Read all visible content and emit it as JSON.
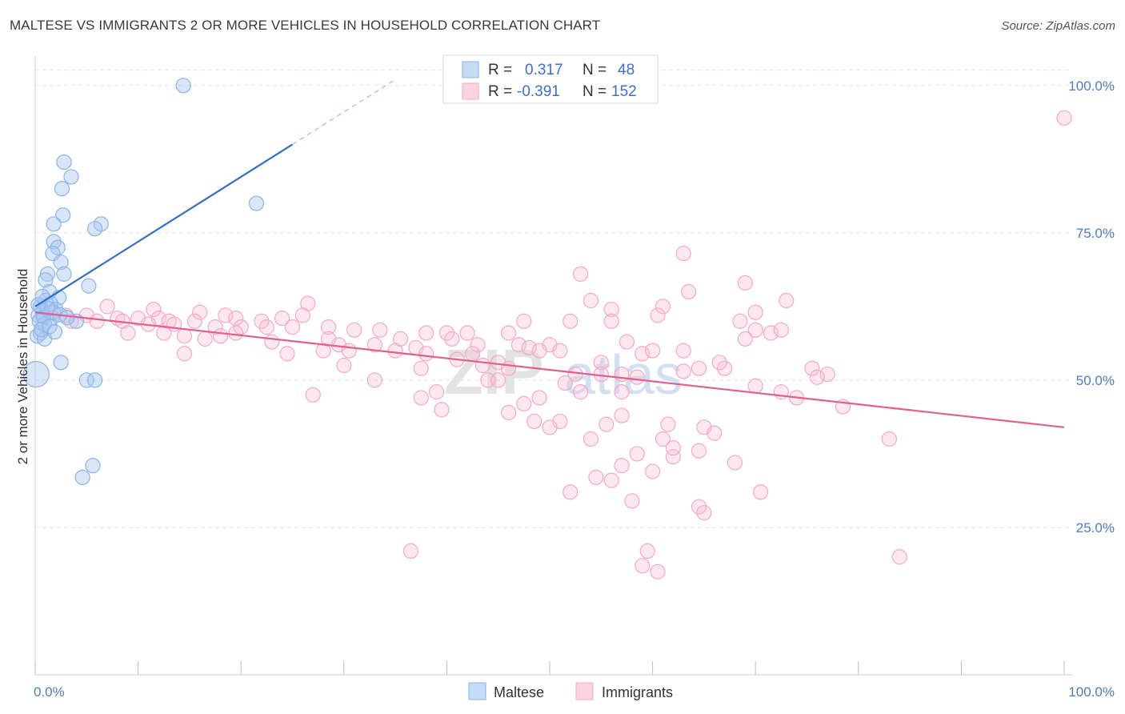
{
  "title": "MALTESE VS IMMIGRANTS 2 OR MORE VEHICLES IN HOUSEHOLD CORRELATION CHART",
  "source": "Source: ZipAtlas.com",
  "watermark": {
    "zip": "ZIP",
    "atlas": "atlas"
  },
  "chart_data": {
    "type": "scatter",
    "ylabel": "2 or more Vehicles in Household",
    "xlim": [
      0,
      100
    ],
    "ylim": [
      0,
      105
    ],
    "x_tick_labels": [
      "0.0%",
      "100.0%"
    ],
    "y_ticks": [
      25,
      50,
      75,
      100
    ],
    "y_tick_labels": [
      "25.0%",
      "50.0%",
      "75.0%",
      "100.0%"
    ],
    "grid": true,
    "legend_placement": "top-center",
    "legend": [
      {
        "r_label": "R =",
        "r_value": "0.317",
        "n_label": "N =",
        "n_value": "48"
      },
      {
        "r_label": "R =",
        "r_value": "-0.391",
        "n_label": "N =",
        "n_value": "152"
      }
    ],
    "series": [
      {
        "name": "Maltese",
        "color": "#89b4ea",
        "trend": {
          "x1": 0,
          "y1": 62.5,
          "x2": 25,
          "y2": 90.0,
          "dash_to_x": 35,
          "dash_to_y": 101.0,
          "color": "#2f6fcb"
        },
        "points": [
          [
            14.4,
            100
          ],
          [
            2.8,
            87
          ],
          [
            3.5,
            84.5
          ],
          [
            2.6,
            82.5
          ],
          [
            2.7,
            78
          ],
          [
            1.8,
            76.5
          ],
          [
            6.4,
            76.5
          ],
          [
            5.8,
            75.7
          ],
          [
            1.8,
            73.5
          ],
          [
            2.2,
            72.5
          ],
          [
            1.7,
            71.5
          ],
          [
            2.5,
            70
          ],
          [
            2.8,
            68
          ],
          [
            1.2,
            68
          ],
          [
            1.0,
            67
          ],
          [
            5.2,
            66
          ],
          [
            1.4,
            65
          ],
          [
            2.3,
            64
          ],
          [
            1.0,
            63.5
          ],
          [
            1.5,
            63
          ],
          [
            0.5,
            62.5
          ],
          [
            2.0,
            62
          ],
          [
            0.7,
            61.5
          ],
          [
            0.3,
            61
          ],
          [
            1.6,
            60.5
          ],
          [
            0.4,
            60
          ],
          [
            4.0,
            60
          ],
          [
            0.9,
            59.5
          ],
          [
            0.5,
            58
          ],
          [
            0.2,
            57.5
          ],
          [
            0.9,
            57
          ],
          [
            21.5,
            80
          ],
          [
            2.5,
            53
          ],
          [
            5.0,
            50
          ],
          [
            5.8,
            50
          ],
          [
            0.1,
            51
          ],
          [
            5.6,
            35.5
          ],
          [
            4.6,
            33.5
          ],
          [
            1.8,
            61.5
          ],
          [
            0.8,
            60.8
          ],
          [
            1.2,
            62.2
          ],
          [
            2.4,
            61.1
          ],
          [
            0.6,
            58.6
          ],
          [
            3.1,
            60.6
          ],
          [
            1.4,
            59.1
          ],
          [
            0.3,
            62.8
          ],
          [
            1.9,
            58.2
          ],
          [
            0.7,
            64.2
          ]
        ]
      },
      {
        "name": "Immigrants",
        "color": "#f4a8c4",
        "trend": {
          "x1": 0,
          "y1": 61.5,
          "x2": 100,
          "y2": 42.0,
          "color": "#e0608f"
        },
        "points": [
          [
            100,
            94.5
          ],
          [
            63,
            71.5
          ],
          [
            53,
            68
          ],
          [
            69,
            66.5
          ],
          [
            63.5,
            65
          ],
          [
            54,
            63.5
          ],
          [
            73,
            63.5
          ],
          [
            26.5,
            63
          ],
          [
            56,
            62
          ],
          [
            61,
            62.5
          ],
          [
            70,
            61.5
          ],
          [
            7,
            62.5
          ],
          [
            11.5,
            62
          ],
          [
            16,
            61.5
          ],
          [
            1.5,
            61.5
          ],
          [
            3,
            61
          ],
          [
            5,
            61
          ],
          [
            8,
            60.5
          ],
          [
            10,
            60.5
          ],
          [
            12,
            60.5
          ],
          [
            13,
            60
          ],
          [
            15.5,
            60
          ],
          [
            18.5,
            61
          ],
          [
            19.5,
            60.5
          ],
          [
            22,
            60
          ],
          [
            24,
            60.5
          ],
          [
            47.5,
            60
          ],
          [
            52,
            60
          ],
          [
            56,
            60
          ],
          [
            60.5,
            61
          ],
          [
            68.5,
            60
          ],
          [
            3.5,
            60
          ],
          [
            6,
            60
          ],
          [
            8.5,
            60
          ],
          [
            11,
            59.5
          ],
          [
            13.5,
            59.5
          ],
          [
            17.5,
            59
          ],
          [
            20,
            59
          ],
          [
            22.5,
            59
          ],
          [
            25,
            59
          ],
          [
            28.5,
            59
          ],
          [
            31,
            58.5
          ],
          [
            33.5,
            58.5
          ],
          [
            38,
            58
          ],
          [
            40,
            58
          ],
          [
            42,
            58
          ],
          [
            46,
            58
          ],
          [
            70,
            58.5
          ],
          [
            71.5,
            58
          ],
          [
            72.5,
            58.5
          ],
          [
            83,
            40
          ],
          [
            84,
            20
          ],
          [
            9,
            58
          ],
          [
            12.5,
            58
          ],
          [
            14.5,
            57.5
          ],
          [
            16.5,
            57
          ],
          [
            18,
            57.5
          ],
          [
            19.5,
            58
          ],
          [
            23,
            56.5
          ],
          [
            29.5,
            56
          ],
          [
            33,
            56
          ],
          [
            37,
            55.5
          ],
          [
            40.5,
            57
          ],
          [
            43,
            56
          ],
          [
            47,
            56
          ],
          [
            50,
            56
          ],
          [
            57.5,
            56.5
          ],
          [
            63,
            55
          ],
          [
            69,
            57
          ],
          [
            14.5,
            54.5
          ],
          [
            24.5,
            54.5
          ],
          [
            28,
            55
          ],
          [
            30.5,
            55
          ],
          [
            35,
            55
          ],
          [
            38,
            54.5
          ],
          [
            41,
            53.5
          ],
          [
            43.5,
            52.5
          ],
          [
            48,
            55.5
          ],
          [
            49,
            55
          ],
          [
            51,
            55
          ],
          [
            55,
            53
          ],
          [
            59,
            54.5
          ],
          [
            64.5,
            52
          ],
          [
            67,
            52
          ],
          [
            75.5,
            52
          ],
          [
            77,
            51
          ],
          [
            30,
            52.5
          ],
          [
            37.5,
            52
          ],
          [
            45,
            53
          ],
          [
            52.5,
            51
          ],
          [
            55,
            51
          ],
          [
            57,
            51
          ],
          [
            58.5,
            50.5
          ],
          [
            76,
            50.5
          ],
          [
            33,
            50
          ],
          [
            44,
            50
          ],
          [
            51.5,
            49.5
          ],
          [
            57,
            48
          ],
          [
            27,
            47.5
          ],
          [
            37.5,
            47
          ],
          [
            39,
            48
          ],
          [
            47.5,
            46
          ],
          [
            72.5,
            48
          ],
          [
            78.5,
            45.5
          ],
          [
            39.5,
            45
          ],
          [
            48.5,
            43
          ],
          [
            53,
            48
          ],
          [
            46,
            44.5
          ],
          [
            51,
            43
          ],
          [
            57,
            44
          ],
          [
            61.5,
            42.5
          ],
          [
            65,
            42
          ],
          [
            55.5,
            42.5
          ],
          [
            61,
            40
          ],
          [
            64.5,
            38
          ],
          [
            58.5,
            37.5
          ],
          [
            62,
            37
          ],
          [
            57,
            35.5
          ],
          [
            54.5,
            33.5
          ],
          [
            60,
            34.5
          ],
          [
            52,
            31
          ],
          [
            56,
            33
          ],
          [
            70.5,
            31
          ],
          [
            58,
            29.5
          ],
          [
            64.5,
            28.5
          ],
          [
            65,
            27.5
          ],
          [
            36.5,
            21
          ],
          [
            59.5,
            21
          ],
          [
            59,
            18.5
          ],
          [
            60.5,
            17.5
          ],
          [
            50,
            42
          ],
          [
            54,
            40
          ],
          [
            62,
            38.5
          ],
          [
            66,
            41
          ],
          [
            68,
            36
          ],
          [
            49,
            47
          ],
          [
            45,
            50
          ],
          [
            63,
            51.5
          ],
          [
            66.5,
            53
          ],
          [
            70,
            49
          ],
          [
            74,
            47
          ],
          [
            60,
            55
          ],
          [
            26,
            61
          ],
          [
            28.5,
            57
          ],
          [
            35.5,
            57
          ],
          [
            42.5,
            54.5
          ],
          [
            46,
            52
          ]
        ]
      }
    ]
  }
}
